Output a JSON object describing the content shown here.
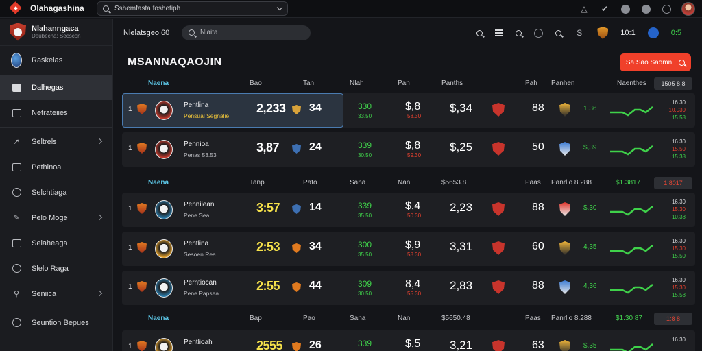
{
  "app": {
    "title": "Olahagashina",
    "search_text": "Sshemfasta foshetiph"
  },
  "sidebar": {
    "brand_title": "Nlahanngaca",
    "brand_sub": "Deubecha: Secscon",
    "items": [
      {
        "label": "Raskelas",
        "icon": "soccer-ball-icon"
      },
      {
        "label": "Dalhegas",
        "icon": "calendar-icon"
      },
      {
        "label": "Netrateiies",
        "icon": "list-icon"
      },
      {
        "label": "Seltrels",
        "icon": "link-icon"
      },
      {
        "label": "Pethinoa",
        "icon": "building-icon"
      },
      {
        "label": "Selchtiaga",
        "icon": "chart-icon"
      },
      {
        "label": "Pelo Moge",
        "icon": "edit-icon"
      },
      {
        "label": "Selaheaga",
        "icon": "document-icon"
      },
      {
        "label": "Slelo Raga",
        "icon": "globe-icon"
      },
      {
        "label": "Seniica",
        "icon": "tool-icon"
      },
      {
        "label": "Seuntion Bepues",
        "icon": "help-icon"
      }
    ]
  },
  "subbar": {
    "label": "Nlelatsgeo 60",
    "search_text": "Nlaita",
    "num1": "10:1",
    "num2": "0:5"
  },
  "page": {
    "title": "MSANNAQAOJIN",
    "cta_label": "Sa Sao Saomn"
  },
  "headers": [
    {
      "name": "Naena",
      "c2": "Bao",
      "c3": "Tan",
      "c4": "Nlah",
      "c5": "Pan",
      "c6": "Panths",
      "c7": "Pah",
      "c8": "Panhen",
      "c9": "Naenthes",
      "more": "1505 8  8"
    },
    {
      "name": "Naena",
      "c2": "Tanp",
      "c3": "Pato",
      "c4": "Sana",
      "c5": "Nan",
      "c6": "$5653.8",
      "c7": "Paas",
      "c8": "Panrlio 8.288",
      "c9": "$1.3817",
      "more": "1:8017"
    },
    {
      "name": "Naena",
      "c2": "Bap",
      "c3": "Pao",
      "c4": "Sana",
      "c5": "Nan",
      "c6": "$5650.48",
      "c7": "Paas",
      "c8": "Panrlio 8.288",
      "c9": "$1.30 87",
      "more": "1:8 8"
    }
  ],
  "rows": [
    {
      "rank": "1",
      "team": "Pentlina",
      "sub": "Pensual Segnalie",
      "big": "2,233",
      "num": "34",
      "g": "330",
      "gr": "33.50",
      "s": "$,8",
      "sr": "58.30",
      "dl": "$,34",
      "n": "88",
      "pct": "1.36",
      "odds": [
        "16.30",
        "10.030",
        "15.58"
      ]
    },
    {
      "rank": "1",
      "team": "Pennioa",
      "sub": "Penas 53.53",
      "big": "3,87",
      "num": "24",
      "g": "339",
      "gr": "30.50",
      "s": "$,8",
      "sr": "59.30",
      "dl": "$,25",
      "n": "50",
      "pct": "$,39",
      "odds": [
        "16.30",
        "15.50",
        "15.38"
      ]
    },
    {
      "rank": "1",
      "team": "Penniiean",
      "sub": "Pene Sea",
      "big": "3:57",
      "num": "14",
      "g": "339",
      "gr": "35.50",
      "s": "$,4",
      "sr": "50.30",
      "dl": "2,23",
      "n": "88",
      "pct": "$,30",
      "odds": [
        "16.30",
        "15.30",
        "10.38"
      ]
    },
    {
      "rank": "1",
      "team": "Pentlina",
      "sub": "Sesoen Rea",
      "big": "2:53",
      "num": "34",
      "g": "300",
      "gr": "35.50",
      "s": "$,9",
      "sr": "58.30",
      "dl": "3,31",
      "n": "60",
      "pct": "4,35",
      "odds": [
        "16.30",
        "15.30",
        "15.50"
      ]
    },
    {
      "rank": "1",
      "team": "Perntiocan",
      "sub": "Pene Papsea",
      "big": "2:55",
      "num": "44",
      "g": "309",
      "gr": "30.50",
      "s": "8,4",
      "sr": "55.30",
      "dl": "2,83",
      "n": "88",
      "pct": "4,36",
      "odds": [
        "16.30",
        "15.30",
        "15.58"
      ]
    },
    {
      "rank": "1",
      "team": "Pentlioah",
      "sub": "",
      "big": "2555",
      "num": "26",
      "g": "339",
      "gr": "",
      "s": "$,5",
      "sr": "",
      "dl": "3,21",
      "n": "63",
      "pct": "$,35",
      "odds": [
        "16.30",
        "",
        ""
      ]
    }
  ]
}
